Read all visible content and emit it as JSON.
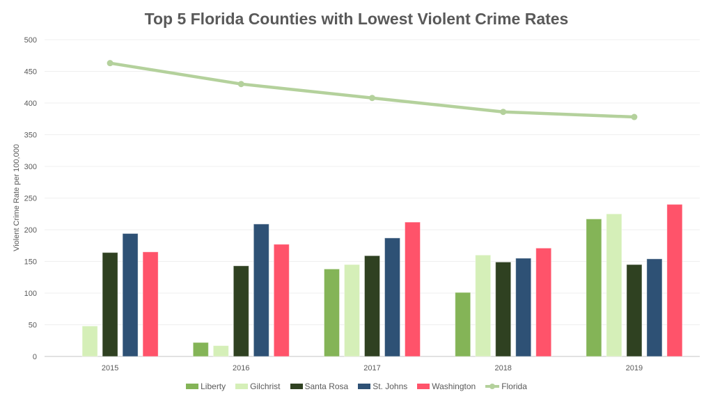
{
  "chart_data": {
    "type": "bar",
    "title": "Top 5 Florida Counties with Lowest Violent Crime Rates",
    "xlabel": "",
    "ylabel": "Violent Crime Rate per 100,000",
    "ylim": [
      0,
      500
    ],
    "yticks": [
      0,
      50,
      100,
      150,
      200,
      250,
      300,
      350,
      400,
      450,
      500
    ],
    "grid": true,
    "legend_position": "bottom",
    "categories": [
      "2015",
      "2016",
      "2017",
      "2018",
      "2019"
    ],
    "series": [
      {
        "name": "Liberty",
        "kind": "bar",
        "color": "#84B457",
        "values": [
          0,
          22,
          138,
          101,
          217
        ]
      },
      {
        "name": "Gilchrist",
        "kind": "bar",
        "color": "#D5EFB8",
        "values": [
          48,
          17,
          145,
          160,
          225
        ]
      },
      {
        "name": "Santa Rosa",
        "kind": "bar",
        "color": "#2F4121",
        "values": [
          164,
          143,
          159,
          149,
          145
        ]
      },
      {
        "name": "St. Johns",
        "kind": "bar",
        "color": "#2E5175",
        "values": [
          194,
          209,
          187,
          155,
          154
        ]
      },
      {
        "name": "Washington",
        "kind": "bar",
        "color": "#FF536A",
        "values": [
          165,
          177,
          212,
          171,
          240
        ]
      },
      {
        "name": "Florida",
        "kind": "line",
        "color": "#B4D19C",
        "values": [
          463,
          430,
          408,
          386,
          378
        ]
      }
    ]
  }
}
